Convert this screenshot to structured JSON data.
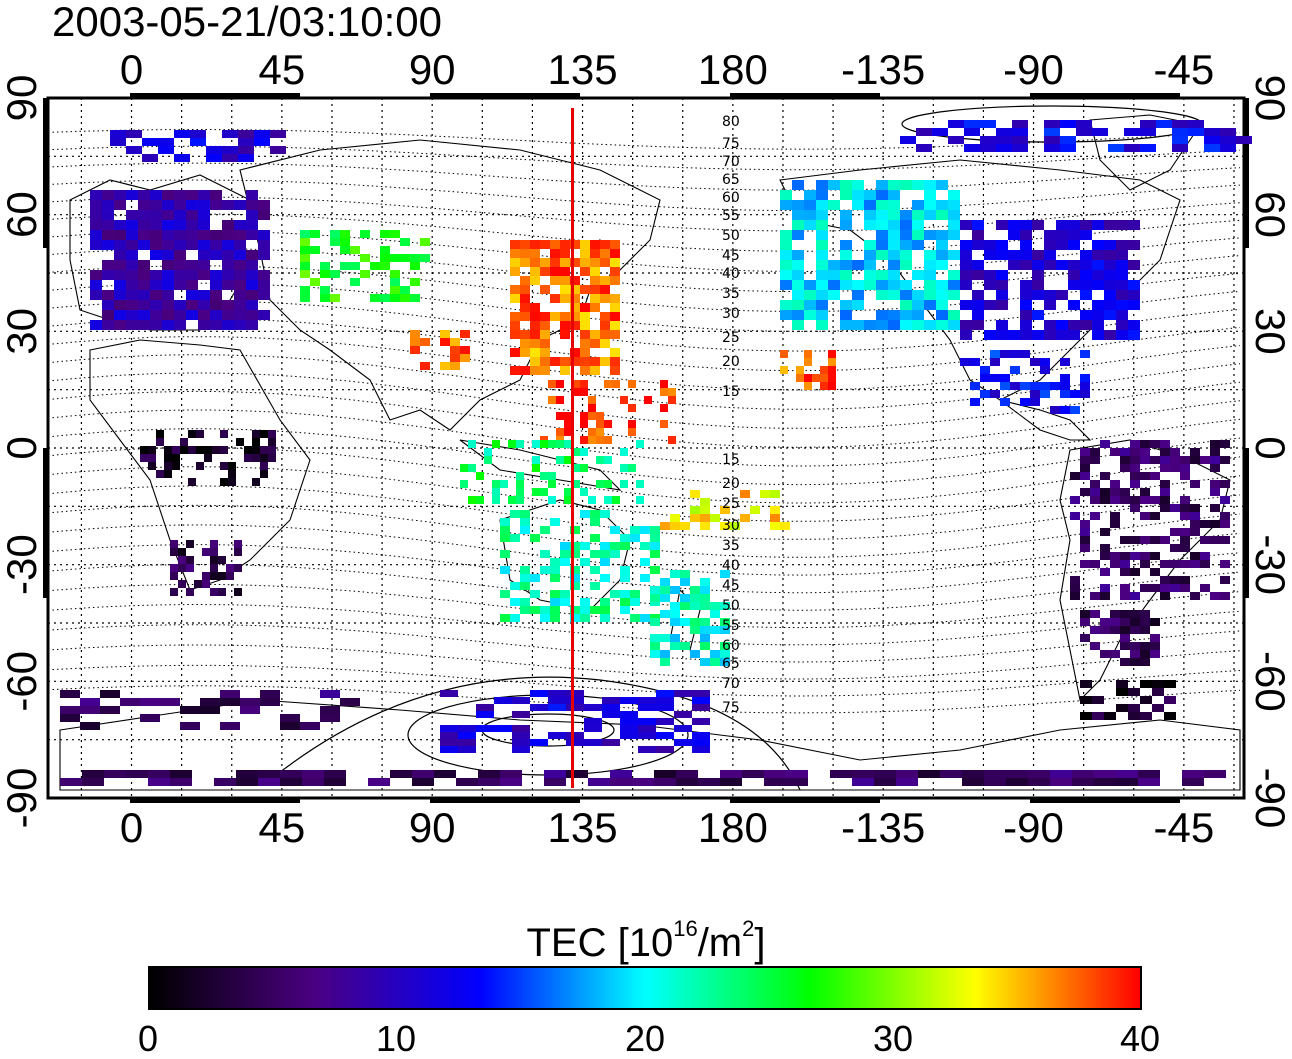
{
  "title": "2003-05-21/03:10:00",
  "map": {
    "lon_ticks": [
      "0",
      "45",
      "90",
      "135",
      "180",
      "-135",
      "-90",
      "-45"
    ],
    "lat_ticks": [
      "90",
      "60",
      "30",
      "0",
      "-30",
      "-60",
      "-90"
    ],
    "contour_labels": [
      "80",
      "75",
      "70",
      "65",
      "60",
      "55",
      "50",
      "45",
      "40",
      "35",
      "30",
      "25",
      "20",
      "15",
      "15",
      "20",
      "25",
      "30",
      "35",
      "40",
      "45",
      "50",
      "55",
      "60",
      "65",
      "70",
      "75"
    ],
    "marker_line_lon": 132,
    "marker_color": "#e60000"
  },
  "colorbar": {
    "title_prefix": "TEC  [10",
    "title_exp1": "16",
    "title_mid": "/m",
    "title_exp2": "2",
    "title_suffix": "]",
    "ticks": [
      "0",
      "10",
      "20",
      "30",
      "40"
    ],
    "min": 0,
    "max": 40,
    "colors": [
      "#000000",
      "#4b0082",
      "#0000ff",
      "#00ffff",
      "#00ff00",
      "#ffff00",
      "#ff0000"
    ]
  }
}
